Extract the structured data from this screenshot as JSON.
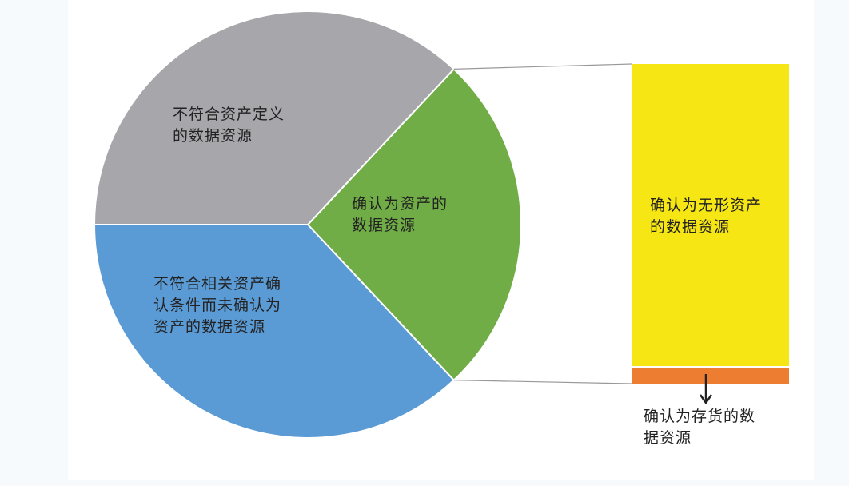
{
  "chart_data": {
    "type": "pie-of-bar",
    "pie": [
      {
        "label": "不符合资产定义的数据资源",
        "label_lines": [
          "不符合资产定义",
          "的数据资源"
        ],
        "share_percent": 37,
        "color": "#a7a6ab"
      },
      {
        "label": "确认为资产的数据资源",
        "label_lines": [
          "确认为资产的",
          "数据资源"
        ],
        "share_percent": 26,
        "color": "#70ad47"
      },
      {
        "label": "不符合相关资产确认条件而未确认为资产的数据资源",
        "label_lines": [
          "不符合相关资产确",
          "认条件而未确认为",
          "资产的数据资源"
        ],
        "share_percent": 37,
        "color": "#5b9bd5"
      }
    ],
    "bar": [
      {
        "label": "确认为无形资产的数据资源",
        "label_lines": [
          "确认为无形资产",
          "的数据资源"
        ],
        "share_percent": 95,
        "color": "#f5e614"
      },
      {
        "label": "确认为存货的数据资源",
        "label_lines": [
          "确认为存货的数",
          "据资源"
        ],
        "share_percent": 5,
        "color": "#ed7d31"
      }
    ]
  }
}
